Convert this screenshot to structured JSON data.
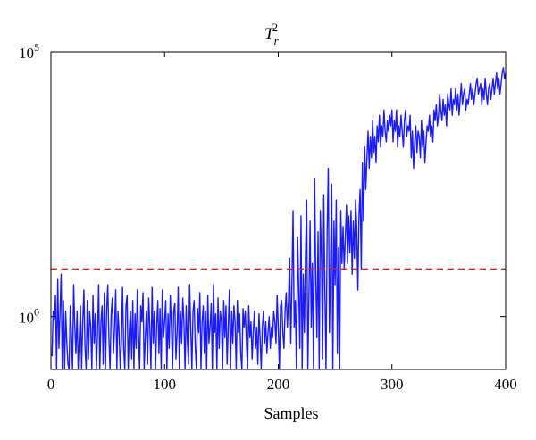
{
  "chart_data": {
    "type": "line",
    "title": "T",
    "title_subscript": "r",
    "title_superscript": "2",
    "xlabel": "Samples",
    "ylabel": "",
    "xlim": [
      0,
      400
    ],
    "ylim": [
      0.1,
      100000
    ],
    "yscale": "log",
    "xticks": [
      0,
      100,
      200,
      300,
      400
    ],
    "xtick_labels": [
      "0",
      "100",
      "200",
      "300",
      "400"
    ],
    "yticks": [
      1,
      100000
    ],
    "ytick_labels": [
      {
        "base": "10",
        "exp": "0"
      },
      {
        "base": "10",
        "exp": "5"
      }
    ],
    "grid": false,
    "legend": "none",
    "colors": {
      "series": "#1a1aff",
      "limit": "#e02020",
      "axes": "#000000"
    },
    "series": [
      {
        "name": "",
        "x_start": 1,
        "x_step": 1,
        "y_log10": [
          -0.75,
          0.1,
          -0.05,
          0.4,
          -1,
          0.7,
          -0.6,
          0.05,
          0.8,
          -1,
          0.3,
          -1,
          0.1,
          -0.5,
          -0.9,
          -1,
          0.2,
          -0.3,
          -1,
          0.6,
          -0.2,
          -0.7,
          0.1,
          -1,
          -0.4,
          0.2,
          -1,
          -0.1,
          0.5,
          -0.6,
          -1,
          0.3,
          -0.8,
          0.1,
          -0.2,
          -1,
          0.4,
          -0.5,
          0.05,
          -1,
          -0.3,
          0.6,
          -1,
          -0.1,
          0.2,
          -0.9,
          0.45,
          -1,
          0.1,
          0.6,
          -0.4,
          -1,
          0.05,
          0.35,
          -0.7,
          -0.2,
          0.5,
          -1,
          0.1,
          -0.3,
          -1,
          -0.5,
          0.55,
          -0.6,
          -1,
          0.2,
          0.4,
          -1,
          -0.25,
          0.1,
          -0.8,
          0.3,
          -1,
          0.05,
          -0.6,
          0.5,
          -0.3,
          -1,
          0.2,
          -0.1,
          0.45,
          -1,
          -0.4,
          0.1,
          -0.9,
          0.35,
          -0.2,
          -1,
          0.55,
          -0.5,
          0.1,
          -1,
          -0.2,
          0.3,
          -0.7,
          0.15,
          -1,
          0.5,
          -0.4,
          -0.1,
          0.3,
          -1,
          0.05,
          -0.6,
          0.4,
          -0.2,
          -1,
          0.1,
          0.25,
          -0.8,
          -0.3,
          0.55,
          -1,
          0.1,
          -0.5,
          0.35,
          -0.1,
          -1,
          0.2,
          -0.45,
          -0.9,
          0.6,
          -0.2,
          -1,
          0.1,
          0.3,
          -0.6,
          -1,
          0.15,
          -0.3,
          0.45,
          -1,
          -0.1,
          0.2,
          -0.7,
          0.1,
          -1,
          0.4,
          -0.5,
          -0.2,
          0.25,
          -1,
          0.6,
          -0.3,
          0.05,
          -1,
          0.35,
          -0.6,
          0.1,
          -0.1,
          -1,
          0.3,
          -0.4,
          0.2,
          -0.9,
          -0.2,
          0.5,
          -1,
          0.1,
          -0.5,
          0.2,
          -0.1,
          -1,
          0.3,
          -0.3,
          0.05,
          -0.7,
          -1,
          0.15,
          -0.2,
          0.1,
          -0.5,
          -1,
          0.2,
          -0.4,
          -0.1,
          -0.8,
          -0.3,
          0.1,
          -0.6,
          -0.2,
          -0.9,
          0.05,
          -0.4,
          -1,
          -0.2,
          0.1,
          -0.5,
          -0.1,
          -0.7,
          -0.3,
          0.0,
          -0.6,
          -0.2,
          -0.4,
          0.1,
          -0.1,
          -0.5,
          0.4,
          -0.2,
          -1,
          0.2,
          0.3,
          -0.3,
          -0.6,
          0.1,
          0.45,
          -0.2,
          0.3,
          1.1,
          -0.5,
          0.6,
          2.0,
          -0.2,
          0.3,
          -1,
          1.5,
          0.5,
          -0.6,
          1.9,
          -1,
          0.8,
          -0.3,
          1.2,
          2.2,
          -1,
          0.4,
          1.8,
          -0.2,
          1.0,
          -1,
          2.6,
          0.7,
          -0.4,
          1.6,
          -1,
          2.0,
          1.1,
          -0.8,
          2.3,
          0.5,
          -1,
          1.6,
          2.8,
          -0.3,
          1.0,
          2.5,
          -1,
          1.8,
          0.6,
          2.2,
          -0.7,
          1.3,
          -1,
          2.0,
          1.0,
          1.7,
          0.9,
          1.5,
          2.1,
          1.0,
          1.9,
          1.2,
          2.0,
          0.8,
          1.8,
          1.1,
          2.2,
          1.7,
          0.5,
          1.9,
          2.4,
          0.9,
          2.9,
          1.8,
          3.2,
          2.4,
          3.0,
          3.5,
          2.8,
          3.4,
          3.0,
          3.7,
          3.1,
          3.4,
          2.9,
          3.6,
          3.3,
          3.8,
          3.2,
          3.6,
          3.4,
          3.9,
          3.5,
          3.3,
          3.7,
          3.5,
          3.8,
          3.6,
          3.9,
          3.3,
          3.7,
          3.5,
          3.9,
          3.2,
          3.6,
          3.4,
          3.8,
          3.5,
          3.2,
          3.7,
          3.9,
          3.4,
          3.6,
          3.5,
          3.8,
          3.0,
          3.5,
          2.8,
          3.3,
          3.6,
          3.1,
          3.5,
          3.4,
          3.0,
          3.7,
          3.2,
          3.5,
          2.9,
          3.3,
          3.6,
          3.5,
          3.8,
          3.4,
          3.6,
          3.3,
          3.9,
          3.7,
          4.0,
          3.6,
          3.8,
          4.2,
          3.9,
          3.7,
          4.1,
          3.8,
          4.0,
          3.6,
          4.2,
          4.0,
          3.9,
          4.3,
          3.8,
          4.1,
          4.0,
          4.3,
          3.9,
          4.2,
          3.8,
          4.1,
          4.4,
          4.0,
          4.2,
          4.3,
          3.9,
          4.1,
          4.0,
          4.2,
          4.4,
          4.1,
          4.3,
          4.0,
          4.2,
          4.4,
          4.5,
          4.2,
          4.3,
          4.4,
          4.0,
          4.3,
          4.1,
          4.5,
          4.2,
          4.0,
          4.3,
          4.4,
          4.1,
          4.3,
          4.5,
          4.2,
          4.4,
          4.6,
          4.3,
          4.5,
          4.2,
          4.4,
          4.6,
          4.7,
          4.5,
          4.6,
          4.4,
          4.5,
          4.7,
          4.6
        ]
      }
    ],
    "control_limit": {
      "y_log10": 0.9,
      "style": "dashed"
    }
  }
}
